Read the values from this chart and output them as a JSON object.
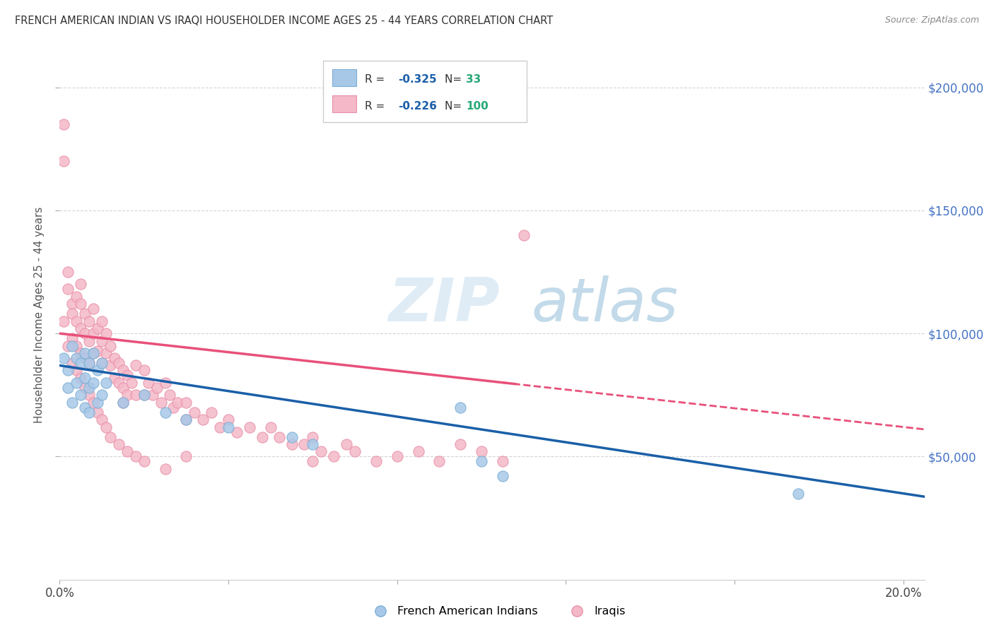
{
  "title": "FRENCH AMERICAN INDIAN VS IRAQI HOUSEHOLDER INCOME AGES 25 - 44 YEARS CORRELATION CHART",
  "source": "Source: ZipAtlas.com",
  "ylabel": "Householder Income Ages 25 - 44 years",
  "xlim": [
    0.0,
    0.205
  ],
  "ylim": [
    0,
    215000
  ],
  "xticks": [
    0.0,
    0.04,
    0.08,
    0.12,
    0.16,
    0.2
  ],
  "xtick_labels": [
    "0.0%",
    "",
    "",
    "",
    "",
    "20.0%"
  ],
  "ytick_labels": [
    "$50,000",
    "$100,000",
    "$150,000",
    "$200,000"
  ],
  "yticks": [
    50000,
    100000,
    150000,
    200000
  ],
  "legend_label1": "French American Indians",
  "legend_label2": "Iraqis",
  "r1": "-0.325",
  "n1": "33",
  "r2": "-0.226",
  "n2": "100",
  "blue_scatter_color": "#a8c8e8",
  "pink_scatter_color": "#f4b8c8",
  "blue_edge_color": "#7aafd4",
  "pink_edge_color": "#e890a8",
  "blue_line_color": "#1a5fa8",
  "pink_line_color": "#e8507a",
  "watermark_zip_color": "#c8ddf0",
  "watermark_atlas_color": "#98c0e0",
  "legend_r_color": "#333333",
  "legend_val_color": "#1a5fa8",
  "legend_n_label_color": "#333333",
  "legend_n_val_color": "#28a878",
  "french_x": [
    0.001,
    0.002,
    0.002,
    0.003,
    0.003,
    0.004,
    0.004,
    0.005,
    0.005,
    0.006,
    0.006,
    0.006,
    0.007,
    0.007,
    0.007,
    0.008,
    0.008,
    0.009,
    0.009,
    0.01,
    0.01,
    0.011,
    0.015,
    0.02,
    0.025,
    0.03,
    0.04,
    0.055,
    0.06,
    0.095,
    0.1,
    0.105,
    0.175
  ],
  "french_y": [
    90000,
    85000,
    78000,
    95000,
    72000,
    90000,
    80000,
    88000,
    75000,
    92000,
    82000,
    70000,
    88000,
    78000,
    68000,
    92000,
    80000,
    85000,
    72000,
    88000,
    75000,
    80000,
    72000,
    75000,
    68000,
    65000,
    62000,
    58000,
    55000,
    70000,
    48000,
    42000,
    35000
  ],
  "iraqi_x": [
    0.001,
    0.001,
    0.002,
    0.002,
    0.003,
    0.003,
    0.003,
    0.004,
    0.004,
    0.004,
    0.005,
    0.005,
    0.005,
    0.005,
    0.006,
    0.006,
    0.006,
    0.007,
    0.007,
    0.007,
    0.008,
    0.008,
    0.008,
    0.009,
    0.009,
    0.01,
    0.01,
    0.01,
    0.011,
    0.011,
    0.012,
    0.012,
    0.013,
    0.013,
    0.014,
    0.014,
    0.015,
    0.015,
    0.015,
    0.016,
    0.016,
    0.017,
    0.018,
    0.018,
    0.02,
    0.02,
    0.021,
    0.022,
    0.023,
    0.024,
    0.025,
    0.026,
    0.027,
    0.028,
    0.03,
    0.03,
    0.032,
    0.034,
    0.036,
    0.038,
    0.04,
    0.042,
    0.045,
    0.048,
    0.05,
    0.052,
    0.055,
    0.058,
    0.06,
    0.062,
    0.065,
    0.068,
    0.07,
    0.075,
    0.08,
    0.085,
    0.09,
    0.095,
    0.1,
    0.105,
    0.001,
    0.002,
    0.003,
    0.004,
    0.005,
    0.006,
    0.007,
    0.008,
    0.009,
    0.01,
    0.011,
    0.012,
    0.014,
    0.016,
    0.018,
    0.02,
    0.025,
    0.03,
    0.06,
    0.11
  ],
  "iraqi_y": [
    185000,
    170000,
    125000,
    118000,
    112000,
    108000,
    98000,
    115000,
    105000,
    95000,
    120000,
    112000,
    102000,
    92000,
    108000,
    100000,
    90000,
    105000,
    97000,
    88000,
    110000,
    100000,
    92000,
    102000,
    93000,
    105000,
    97000,
    88000,
    100000,
    92000,
    95000,
    87000,
    90000,
    82000,
    88000,
    80000,
    85000,
    78000,
    72000,
    83000,
    75000,
    80000,
    87000,
    75000,
    85000,
    75000,
    80000,
    75000,
    78000,
    72000,
    80000,
    75000,
    70000,
    72000,
    72000,
    65000,
    68000,
    65000,
    68000,
    62000,
    65000,
    60000,
    62000,
    58000,
    62000,
    58000,
    55000,
    55000,
    58000,
    52000,
    50000,
    55000,
    52000,
    48000,
    50000,
    52000,
    48000,
    55000,
    52000,
    48000,
    105000,
    95000,
    88000,
    85000,
    82000,
    78000,
    75000,
    72000,
    68000,
    65000,
    62000,
    58000,
    55000,
    52000,
    50000,
    48000,
    45000,
    50000,
    48000,
    140000
  ]
}
